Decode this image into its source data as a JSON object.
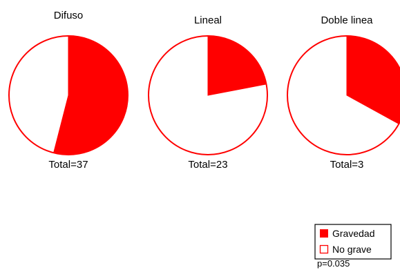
{
  "colors": {
    "grave": "#ff0000",
    "no_grave": "#ffffff",
    "stroke": "#ff0000"
  },
  "chart_data": [
    {
      "type": "pie",
      "title": "Difuso",
      "total_label": "Total=37",
      "series": [
        {
          "name": "Gravedad",
          "value": 0.54
        },
        {
          "name": "No grave",
          "value": 0.46
        }
      ]
    },
    {
      "type": "pie",
      "title": "Lineal",
      "total_label": "Total=23",
      "series": [
        {
          "name": "Gravedad",
          "value": 0.22
        },
        {
          "name": "No grave",
          "value": 0.78
        }
      ]
    },
    {
      "type": "pie",
      "title": "Doble linea",
      "total_label": "Total=3",
      "series": [
        {
          "name": "Gravedad",
          "value": 0.33
        },
        {
          "name": "No grave",
          "value": 0.67
        }
      ]
    }
  ],
  "legend": {
    "items": [
      {
        "label": "Gravedad"
      },
      {
        "label": "No grave"
      }
    ],
    "placement": "bottom-right"
  },
  "annotation": "p=0.035"
}
